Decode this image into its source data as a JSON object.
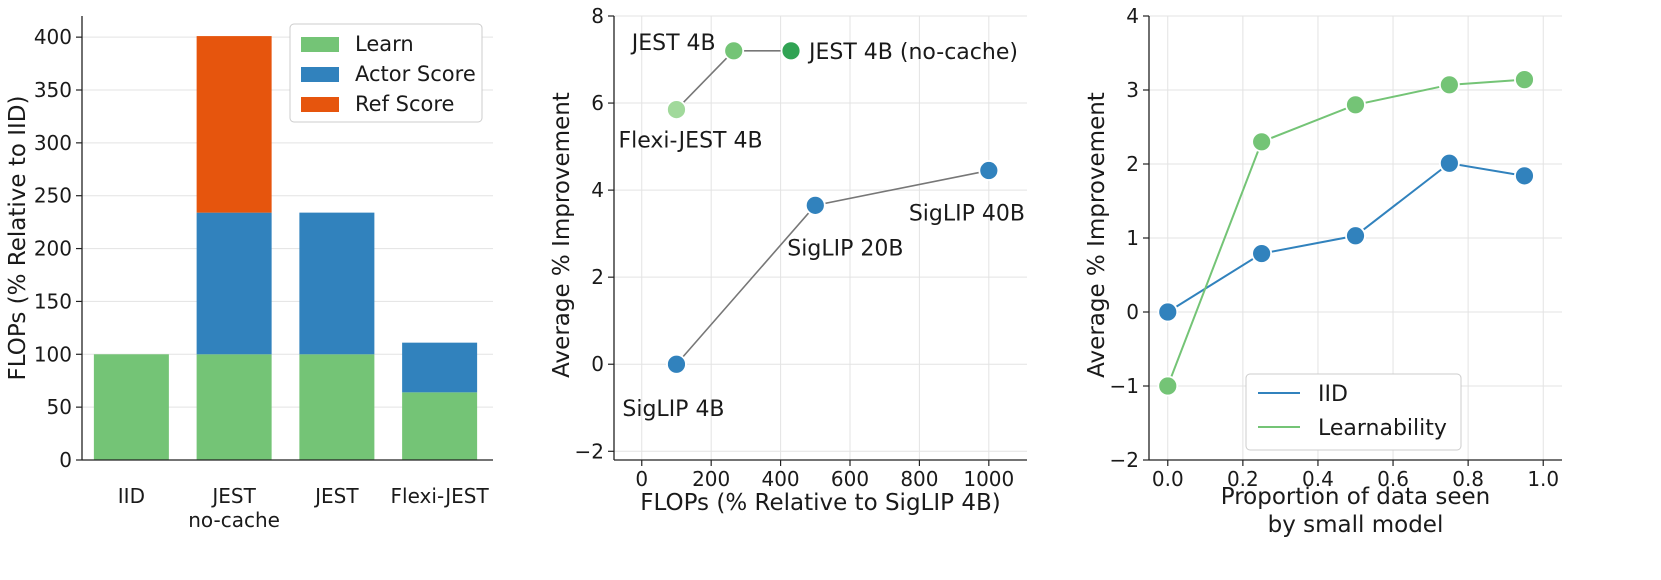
{
  "chart_data": [
    {
      "type": "bar",
      "stacked": true,
      "categories": [
        "IID",
        "JEST\nno-cache",
        "JEST",
        "Flexi-JEST"
      ],
      "series": [
        {
          "name": "Learn",
          "color": "#74c476",
          "values": [
            100,
            100,
            100,
            64
          ]
        },
        {
          "name": "Actor Score",
          "color": "#3182bd",
          "values": [
            0,
            134,
            134,
            47
          ]
        },
        {
          "name": "Ref Score",
          "color": "#e6550d",
          "values": [
            0,
            167,
            0,
            0
          ]
        }
      ],
      "ylabel": "FLOPs (% Relative to IID)",
      "ylim": [
        0,
        420
      ],
      "yticks": [
        0,
        50,
        100,
        150,
        200,
        250,
        300,
        350,
        400
      ],
      "grid": "horizontal",
      "legend": "top-right"
    },
    {
      "type": "scatter",
      "xlabel": "FLOPs (% Relative to SigLIP 4B)",
      "ylabel": "Average % Improvement",
      "xlim": [
        -80,
        1110
      ],
      "ylim": [
        -2.2,
        8
      ],
      "xticks": [
        0,
        200,
        400,
        600,
        800,
        1000
      ],
      "yticks": [
        -2,
        0,
        2,
        4,
        6,
        8
      ],
      "grid": "both",
      "points": [
        {
          "label": "SigLIP 4B",
          "x": 100,
          "y": 0,
          "color": "#3182bd"
        },
        {
          "label": "SigLIP 20B",
          "x": 500,
          "y": 3.65,
          "color": "#3182bd"
        },
        {
          "label": "SigLIP 40B",
          "x": 1000,
          "y": 4.45,
          "color": "#3182bd"
        },
        {
          "label": "Flexi-JEST 4B",
          "x": 100,
          "y": 5.85,
          "color": "#a1d99b"
        },
        {
          "label": "JEST 4B",
          "x": 265,
          "y": 7.2,
          "color": "#74c476"
        },
        {
          "label": "JEST 4B (no-cache)",
          "x": 430,
          "y": 7.2,
          "color": "#31a354"
        }
      ],
      "connections": [
        [
          "SigLIP 4B",
          "SigLIP 20B",
          "SigLIP 40B"
        ],
        [
          "Flexi-JEST 4B",
          "JEST 4B",
          "JEST 4B (no-cache)"
        ]
      ]
    },
    {
      "type": "line",
      "xlabel": "Proportion of data seen\nby small model",
      "ylabel": "Average % Improvement",
      "xlim": [
        -0.05,
        1.05
      ],
      "ylim": [
        -2,
        4
      ],
      "xticks": [
        0.0,
        0.2,
        0.4,
        0.6,
        0.8,
        1.0
      ],
      "yticks": [
        -2,
        -1,
        0,
        1,
        2,
        3,
        4
      ],
      "grid": "both",
      "legend": "lower-center",
      "x": [
        0.0,
        0.25,
        0.5,
        0.75,
        0.95
      ],
      "series": [
        {
          "name": "IID",
          "color": "#3182bd",
          "values": [
            0.0,
            0.79,
            1.03,
            2.01,
            1.84
          ]
        },
        {
          "name": "Learnability",
          "color": "#74c476",
          "values": [
            -1.0,
            2.3,
            2.8,
            3.07,
            3.14
          ]
        }
      ]
    }
  ]
}
